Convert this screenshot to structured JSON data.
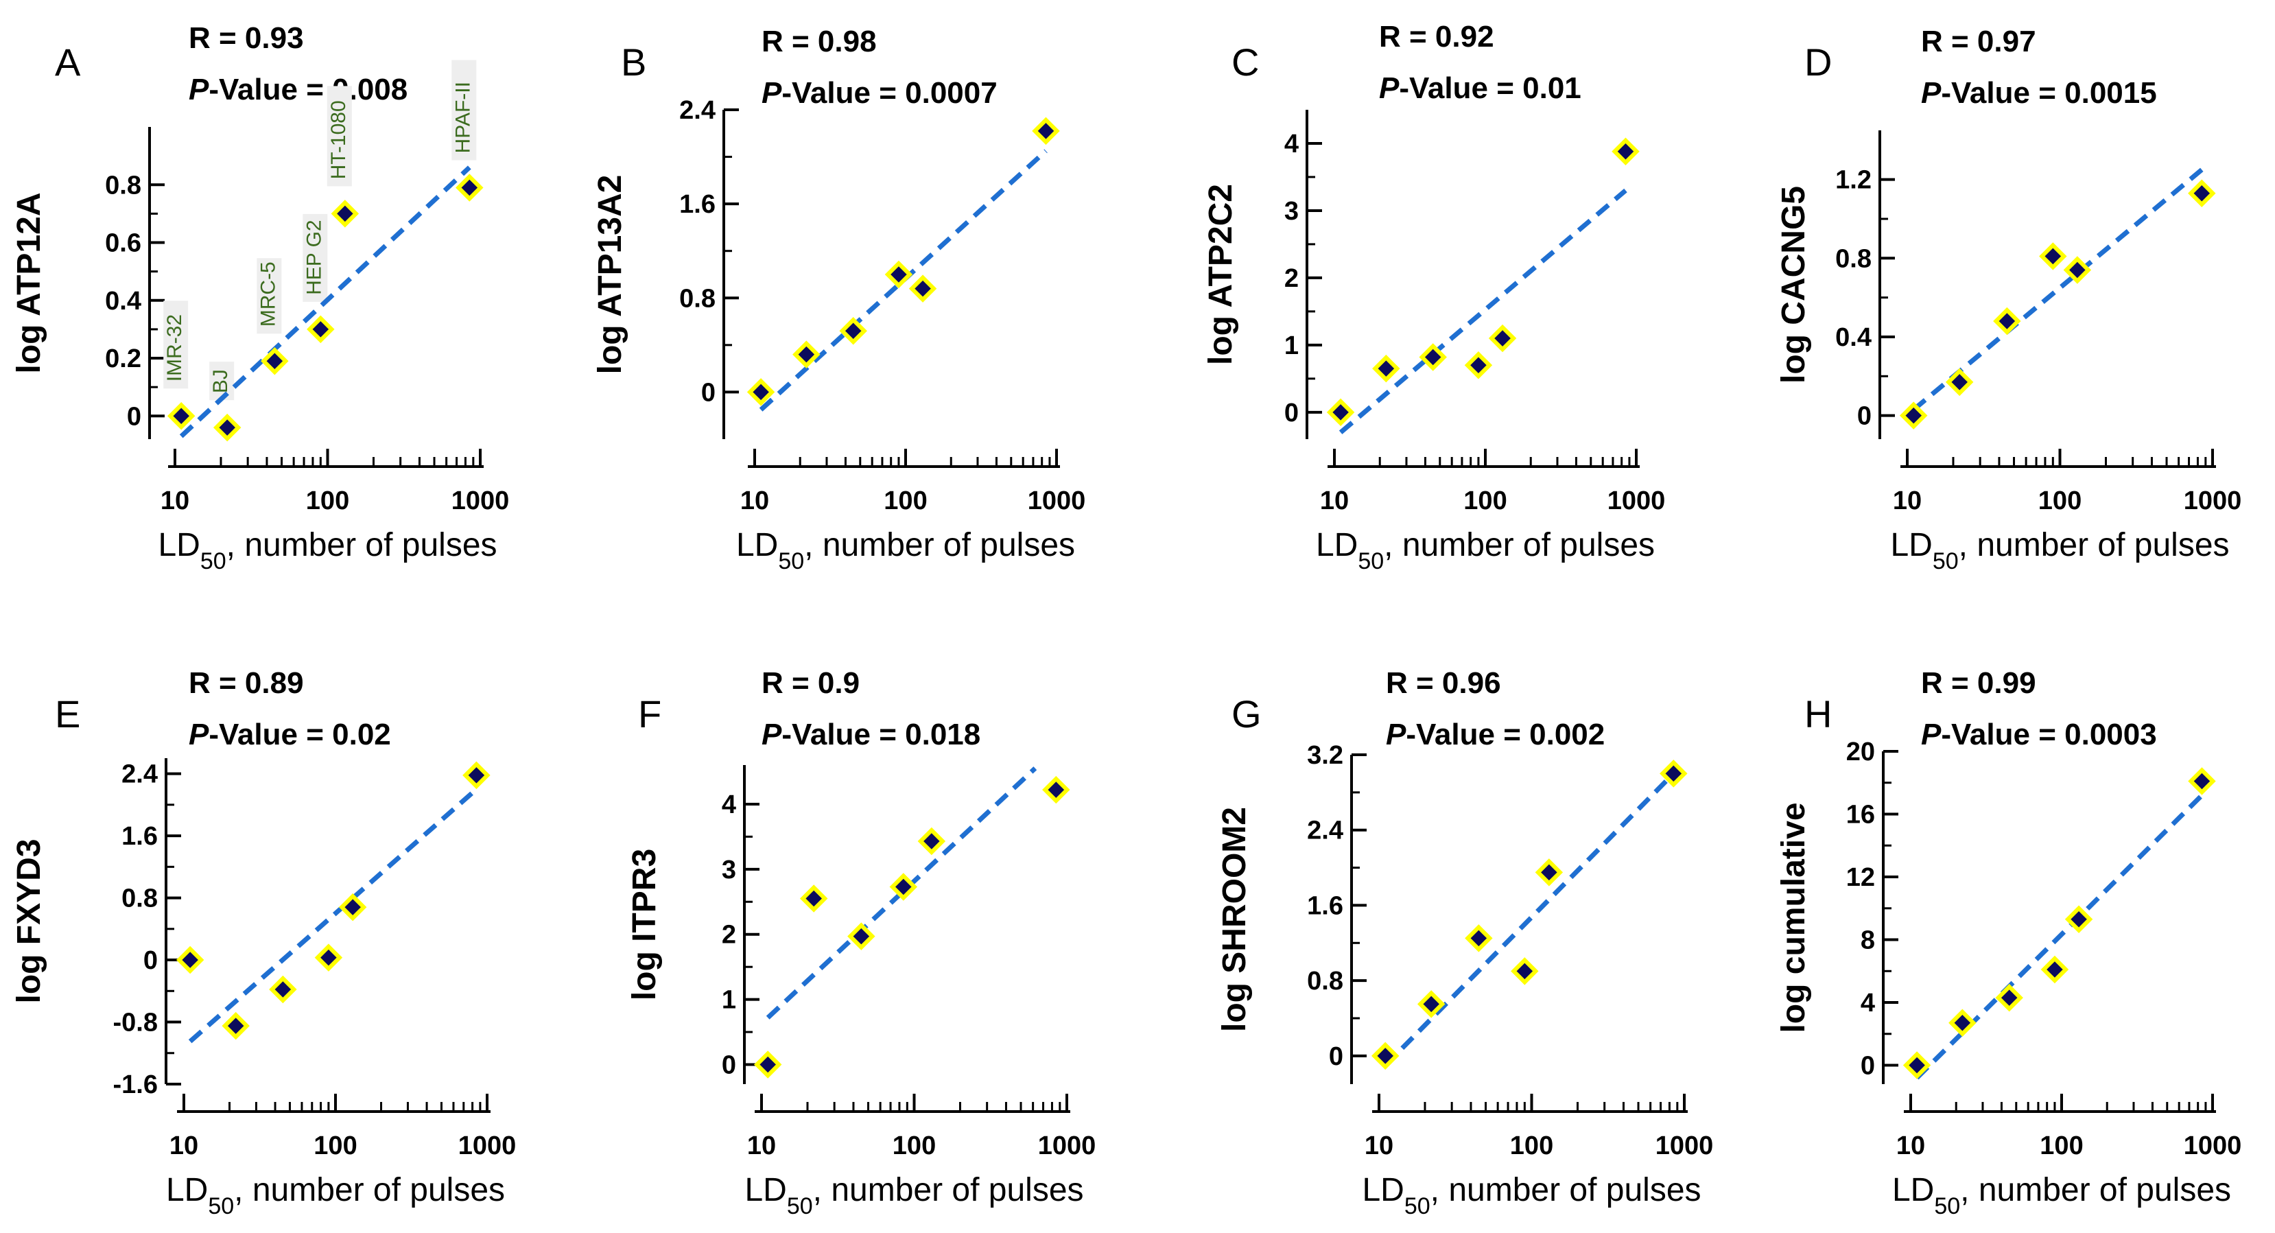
{
  "xlabel_main": "LD",
  "xlabel_sub": "50",
  "xlabel_rest": ", number of pulses",
  "p_label_italic": "P",
  "x_ticks": [
    "10",
    "100",
    "1000"
  ],
  "colors": {
    "fit": "#1f6fd1",
    "marker_fill": "#0b0b5c",
    "marker_edge": "#ffff00"
  },
  "chart_data": [
    {
      "type": "scatter",
      "panel": "A",
      "r_text": "R = 0.93",
      "p_rest": "-Value = 0.008",
      "ylabel": "log  ATP12A",
      "yticks": [
        0,
        0.2,
        0.4,
        0.6,
        0.8
      ],
      "ytick_labels": [
        "0",
        "0.2",
        "0.4",
        "0.6",
        "0.8"
      ],
      "ylim": [
        -0.08,
        1.0
      ],
      "xlim": [
        8,
        1000
      ],
      "x": [
        11,
        22,
        45,
        90,
        130,
        850
      ],
      "y": [
        0.0,
        -0.04,
        0.19,
        0.3,
        0.7,
        0.79
      ],
      "cell_labels": [
        "IMR-32",
        "BJ",
        "MRC-5",
        "HEP G2",
        "HT-1080",
        "HPAF-II"
      ],
      "fit": {
        "x": [
          11,
          850
        ],
        "y": [
          -0.07,
          0.86
        ]
      }
    },
    {
      "type": "scatter",
      "panel": "B",
      "r_text": "R = 0.98",
      "p_rest": "-Value = 0.0007",
      "ylabel": "log  ATP13A2",
      "yticks": [
        0,
        0.8,
        1.6,
        2.4
      ],
      "ytick_labels": [
        "0",
        "0.8",
        "1.6",
        "2.4"
      ],
      "ylim": [
        -0.4,
        2.4
      ],
      "xlim": [
        8,
        1000
      ],
      "x": [
        11,
        22,
        45,
        90,
        130,
        850
      ],
      "y": [
        0.0,
        0.32,
        0.52,
        1.0,
        0.88,
        2.22
      ],
      "fit": {
        "x": [
          11,
          850
        ],
        "y": [
          -0.15,
          2.05
        ]
      }
    },
    {
      "type": "scatter",
      "panel": "C",
      "r_text": "R = 0.92",
      "p_rest": "-Value = 0.01",
      "ylabel": "log  ATP2C2",
      "yticks": [
        0,
        1,
        2,
        3,
        4
      ],
      "ytick_labels": [
        "0",
        "1",
        "2",
        "3",
        "4"
      ],
      "ylim": [
        -0.4,
        4.5
      ],
      "xlim": [
        8,
        1000
      ],
      "x": [
        11,
        22,
        45,
        90,
        130,
        850
      ],
      "y": [
        0.0,
        0.65,
        0.82,
        0.7,
        1.1,
        3.88
      ],
      "fit": {
        "x": [
          11,
          850
        ],
        "y": [
          -0.3,
          3.3
        ]
      }
    },
    {
      "type": "scatter",
      "panel": "D",
      "r_text": "R = 0.97",
      "p_rest": "-Value = 0.0015",
      "ylabel": "log  CACNG5",
      "yticks": [
        0,
        0.4,
        0.8,
        1.2
      ],
      "ytick_labels": [
        "0",
        "0.4",
        "0.8",
        "1.2"
      ],
      "ylim": [
        -0.12,
        1.45
      ],
      "xlim": [
        8,
        1000
      ],
      "x": [
        11,
        22,
        45,
        90,
        130,
        850
      ],
      "y": [
        0.0,
        0.17,
        0.48,
        0.81,
        0.74,
        1.13
      ],
      "fit": {
        "x": [
          11,
          850
        ],
        "y": [
          0.03,
          1.25
        ]
      }
    },
    {
      "type": "scatter",
      "panel": "E",
      "r_text": "R = 0.89",
      "p_rest": "-Value = 0.02",
      "ylabel": "log  FXYD3",
      "yticks": [
        -1.6,
        -0.8,
        0,
        0.8,
        1.6,
        2.4
      ],
      "ytick_labels": [
        "-1.6",
        "-0.8",
        "0",
        "0.8",
        "1.6",
        "2.4"
      ],
      "ylim": [
        -1.6,
        2.6
      ],
      "xlim": [
        8,
        1000
      ],
      "x": [
        11,
        22,
        45,
        90,
        130,
        850
      ],
      "y": [
        0.0,
        -0.85,
        -0.38,
        0.03,
        0.68,
        2.38
      ],
      "fit": {
        "x": [
          11,
          850
        ],
        "y": [
          -1.05,
          2.2
        ]
      }
    },
    {
      "type": "scatter",
      "panel": "F",
      "r_text": "R = 0.9",
      "p_rest": "-Value = 0.018",
      "ylabel": "log  ITPR3",
      "yticks": [
        0,
        1,
        2,
        3,
        4
      ],
      "ytick_labels": [
        "0",
        "1",
        "2",
        "3",
        "4"
      ],
      "ylim": [
        -0.3,
        4.6
      ],
      "xlim": [
        8,
        1000
      ],
      "x": [
        11,
        22,
        45,
        85,
        130,
        850
      ],
      "y": [
        0.0,
        2.55,
        1.97,
        2.73,
        3.43,
        4.22
      ],
      "fit": {
        "x": [
          11,
          620
        ],
        "y": [
          0.72,
          4.55
        ]
      }
    },
    {
      "type": "scatter",
      "panel": "G",
      "r_text": "R = 0.96",
      "p_rest": "-Value = 0.002",
      "ylabel": "log  SHROOM2",
      "yticks": [
        0,
        0.8,
        1.6,
        2.4,
        3.2
      ],
      "ytick_labels": [
        "0",
        "0.8",
        "1.6",
        "2.4",
        "3.2"
      ],
      "ylim": [
        -0.3,
        3.2
      ],
      "xlim": [
        8,
        1000
      ],
      "x": [
        11,
        22,
        45,
        90,
        130,
        850
      ],
      "y": [
        0.0,
        0.55,
        1.25,
        0.9,
        1.95,
        3.0
      ],
      "fit": {
        "x": [
          11,
          850
        ],
        "y": [
          -0.1,
          3.0
        ]
      }
    },
    {
      "type": "scatter",
      "panel": "H",
      "r_text": "R = 0.99",
      "p_rest": "-Value = 0.0003",
      "ylabel": "log  cumulative",
      "yticks": [
        0,
        4,
        8,
        12,
        16,
        20
      ],
      "ytick_labels": [
        "0",
        "4",
        "8",
        "12",
        "16",
        "20"
      ],
      "ylim": [
        -1.2,
        20
      ],
      "xlim": [
        8,
        1000
      ],
      "x": [
        11,
        22,
        45,
        90,
        130,
        850
      ],
      "y": [
        0.0,
        2.7,
        4.3,
        6.1,
        9.3,
        18.1
      ],
      "fit": {
        "x": [
          11,
          850
        ],
        "y": [
          -0.8,
          17.2
        ]
      }
    }
  ]
}
